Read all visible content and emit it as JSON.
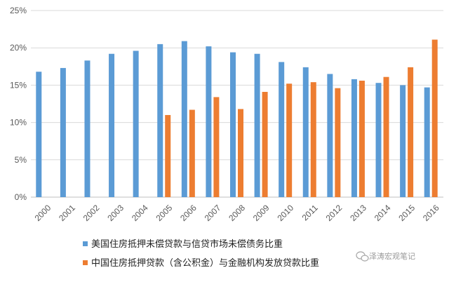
{
  "chart_data": {
    "type": "bar",
    "categories": [
      "2000",
      "2001",
      "2002",
      "2003",
      "2004",
      "2005",
      "2006",
      "2007",
      "2008",
      "2009",
      "2010",
      "2011",
      "2012",
      "2013",
      "2014",
      "2015",
      "2016"
    ],
    "series": [
      {
        "name": "美国住房抵押未偿贷款与信贷市场未偿债务比重",
        "color": "#5b9bd5",
        "values": [
          16.8,
          17.3,
          18.3,
          19.2,
          19.6,
          20.5,
          20.9,
          20.2,
          19.4,
          19.2,
          18.1,
          17.4,
          16.5,
          15.8,
          15.3,
          15.0,
          14.7
        ]
      },
      {
        "name": "中国住房抵押贷款（含公积金）与金融机构发放贷款比重",
        "color": "#ed7d31",
        "values": [
          null,
          null,
          null,
          null,
          null,
          11.0,
          11.7,
          13.4,
          11.8,
          14.1,
          15.2,
          15.4,
          14.6,
          15.6,
          16.1,
          17.4,
          21.1
        ]
      }
    ],
    "y_ticks": [
      "0%",
      "5%",
      "10%",
      "15%",
      "20%",
      "25%"
    ],
    "ylim": [
      0,
      25
    ],
    "grid": "horizontal",
    "legend_position": "bottom"
  },
  "watermark": "泽涛宏观笔记"
}
